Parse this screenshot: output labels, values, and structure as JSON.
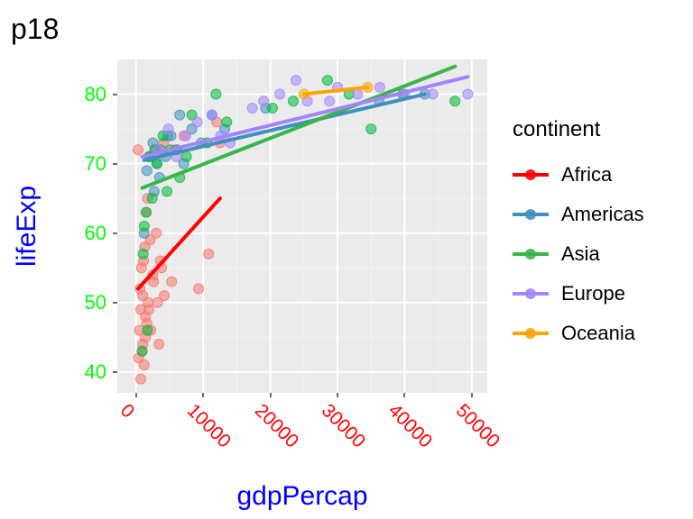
{
  "title": "p18",
  "x_label": "gdpPercap",
  "y_label": "lifeExp",
  "axis_title_color": "#0000ff",
  "x_tick_color": "#ff0000",
  "y_tick_color": "#00ff00",
  "tick_fontsize": 22,
  "axis_title_fontsize": 30,
  "title_fontsize": 32,
  "panel_bg": "#ebebeb",
  "grid_major_color": "#ffffff",
  "grid_minor_color": "#f4f4f4",
  "grid_major_width": 2,
  "grid_minor_width": 1,
  "point_radius": 5.5,
  "point_opacity": 0.55,
  "line_width": 4,
  "xlim": [
    -2800,
    52300
  ],
  "ylim": [
    37,
    85
  ],
  "x_ticks": [
    0,
    10000,
    20000,
    30000,
    40000,
    50000
  ],
  "x_minor": [
    5000,
    15000,
    25000,
    35000,
    45000
  ],
  "y_ticks": [
    40,
    50,
    60,
    70,
    80
  ],
  "y_minor": [
    45,
    55,
    65,
    75
  ],
  "legend": {
    "title": "continent",
    "items": [
      {
        "label": "Africa",
        "color": "#f8766d"
      },
      {
        "label": "Americas",
        "color": "#a3a500"
      },
      {
        "label": "Asia",
        "color": "#00bf7d"
      },
      {
        "label": "Europe",
        "color": "#a284ff"
      },
      {
        "label": "Oceania",
        "color": "#ffa500"
      }
    ]
  },
  "colors": {
    "Africa": "#f8766d",
    "Americas": "#3f8fbf",
    "Asia": "#00ba38",
    "Europe": "#a284ff",
    "Oceania": "#ffa500"
  },
  "legend_colors": {
    "Africa": "#ff0000",
    "Americas": "#3f8fbf",
    "Asia": "#39b54a",
    "Europe": "#a284ff",
    "Oceania": "#ffa500"
  },
  "series": {
    "Africa": {
      "line": {
        "x1": 300,
        "y1": 52,
        "x2": 12500,
        "y2": 65
      },
      "points": [
        [
          300,
          72
        ],
        [
          400,
          42
        ],
        [
          500,
          46
        ],
        [
          600,
          52
        ],
        [
          700,
          49
        ],
        [
          800,
          55
        ],
        [
          900,
          43
        ],
        [
          1000,
          51
        ],
        [
          1100,
          56
        ],
        [
          1200,
          41
        ],
        [
          1300,
          58
        ],
        [
          1400,
          45
        ],
        [
          1500,
          63
        ],
        [
          1600,
          47
        ],
        [
          1700,
          65
        ],
        [
          1900,
          49
        ],
        [
          2100,
          59
        ],
        [
          2300,
          71
        ],
        [
          2500,
          54
        ],
        [
          2800,
          72
        ],
        [
          3200,
          50
        ],
        [
          3600,
          56
        ],
        [
          4100,
          73
        ],
        [
          5300,
          53
        ],
        [
          5800,
          72
        ],
        [
          7100,
          74
        ],
        [
          9300,
          52
        ],
        [
          10800,
          57
        ],
        [
          12000,
          76
        ],
        [
          12500,
          73
        ],
        [
          700,
          39
        ],
        [
          1000,
          44
        ],
        [
          1400,
          48
        ],
        [
          1800,
          50
        ],
        [
          2200,
          46
        ],
        [
          2600,
          53
        ],
        [
          3000,
          60
        ],
        [
          3400,
          44
        ],
        [
          3800,
          55
        ],
        [
          4200,
          51
        ]
      ]
    },
    "Americas": {
      "line": {
        "x1": 1200,
        "y1": 70.5,
        "x2": 43000,
        "y2": 80
      },
      "points": [
        [
          1200,
          60
        ],
        [
          1600,
          69
        ],
        [
          2000,
          71
        ],
        [
          2500,
          73
        ],
        [
          3100,
          70
        ],
        [
          3700,
          72
        ],
        [
          4400,
          71
        ],
        [
          5200,
          74
        ],
        [
          6100,
          72
        ],
        [
          7100,
          70
        ],
        [
          8300,
          75
        ],
        [
          9700,
          73
        ],
        [
          11300,
          77
        ],
        [
          13200,
          75
        ],
        [
          19300,
          78
        ],
        [
          36200,
          79
        ],
        [
          43000,
          80
        ],
        [
          2700,
          66
        ],
        [
          3500,
          68
        ],
        [
          4700,
          74
        ],
        [
          6500,
          77
        ]
      ]
    },
    "Asia": {
      "line": {
        "x1": 900,
        "y1": 66.5,
        "x2": 47500,
        "y2": 84
      },
      "points": [
        [
          900,
          43
        ],
        [
          1200,
          61
        ],
        [
          1500,
          63
        ],
        [
          1900,
          71
        ],
        [
          2400,
          65
        ],
        [
          3100,
          70
        ],
        [
          4000,
          74
        ],
        [
          5100,
          72
        ],
        [
          6500,
          68
        ],
        [
          8300,
          77
        ],
        [
          10600,
          73
        ],
        [
          13500,
          76
        ],
        [
          23400,
          79
        ],
        [
          28500,
          82
        ],
        [
          31700,
          80
        ],
        [
          39700,
          80
        ],
        [
          47500,
          79
        ],
        [
          1050,
          57
        ],
        [
          1700,
          46
        ],
        [
          2800,
          72
        ],
        [
          4600,
          66
        ],
        [
          7500,
          71
        ],
        [
          11900,
          80
        ],
        [
          20300,
          78
        ],
        [
          35000,
          75
        ]
      ]
    },
    "Europe": {
      "line": {
        "x1": 900,
        "y1": 71,
        "x2": 49400,
        "y2": 82.5
      },
      "points": [
        [
          6000,
          71
        ],
        [
          7400,
          74
        ],
        [
          9100,
          76
        ],
        [
          11300,
          77
        ],
        [
          14000,
          73
        ],
        [
          17300,
          78
        ],
        [
          21400,
          80
        ],
        [
          25500,
          79
        ],
        [
          28800,
          79
        ],
        [
          30000,
          81
        ],
        [
          33000,
          80
        ],
        [
          36300,
          81
        ],
        [
          40000,
          80
        ],
        [
          44200,
          80
        ],
        [
          49400,
          80
        ],
        [
          3200,
          72
        ],
        [
          4800,
          75
        ],
        [
          12600,
          74
        ],
        [
          19000,
          79
        ],
        [
          23800,
          82
        ]
      ]
    },
    "Oceania": {
      "line": {
        "x1": 25000,
        "y1": 80,
        "x2": 34500,
        "y2": 81
      },
      "points": [
        [
          25000,
          80
        ],
        [
          34500,
          81
        ]
      ]
    }
  }
}
